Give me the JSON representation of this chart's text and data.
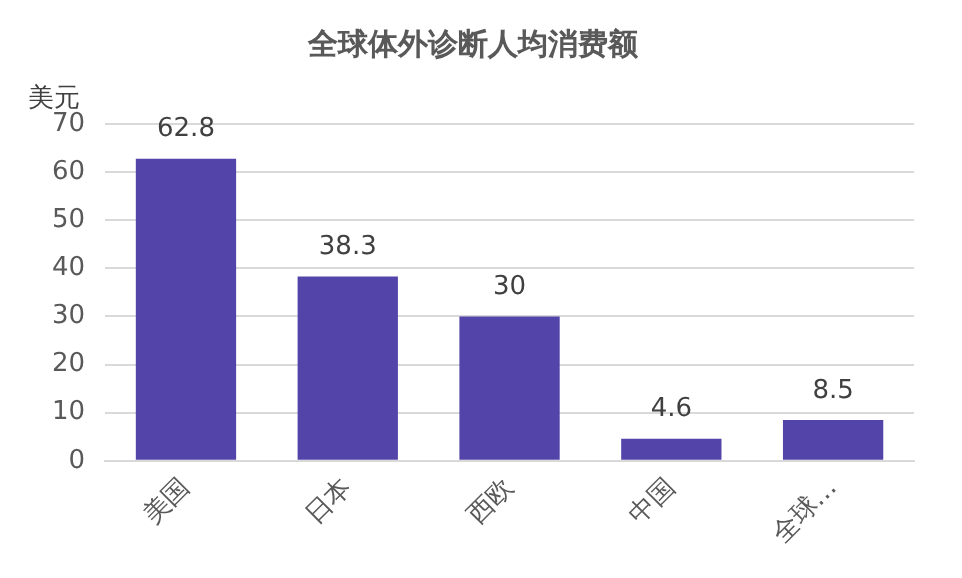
{
  "chart_data": {
    "type": "bar",
    "title": "全球体外诊断人均消费额",
    "ylabel": "美元",
    "categories": [
      "美国",
      "日本",
      "西欧",
      "中国",
      "全球…"
    ],
    "series": [
      {
        "color": "#5344a9",
        "values": [
          62.8,
          38.3,
          30,
          4.6,
          8.5
        ]
      }
    ],
    "ylim": [
      0,
      70
    ],
    "yticks": [
      0,
      10,
      20,
      30,
      40,
      50,
      60,
      70
    ],
    "grid": "y",
    "data_labels": true,
    "legend": false
  }
}
